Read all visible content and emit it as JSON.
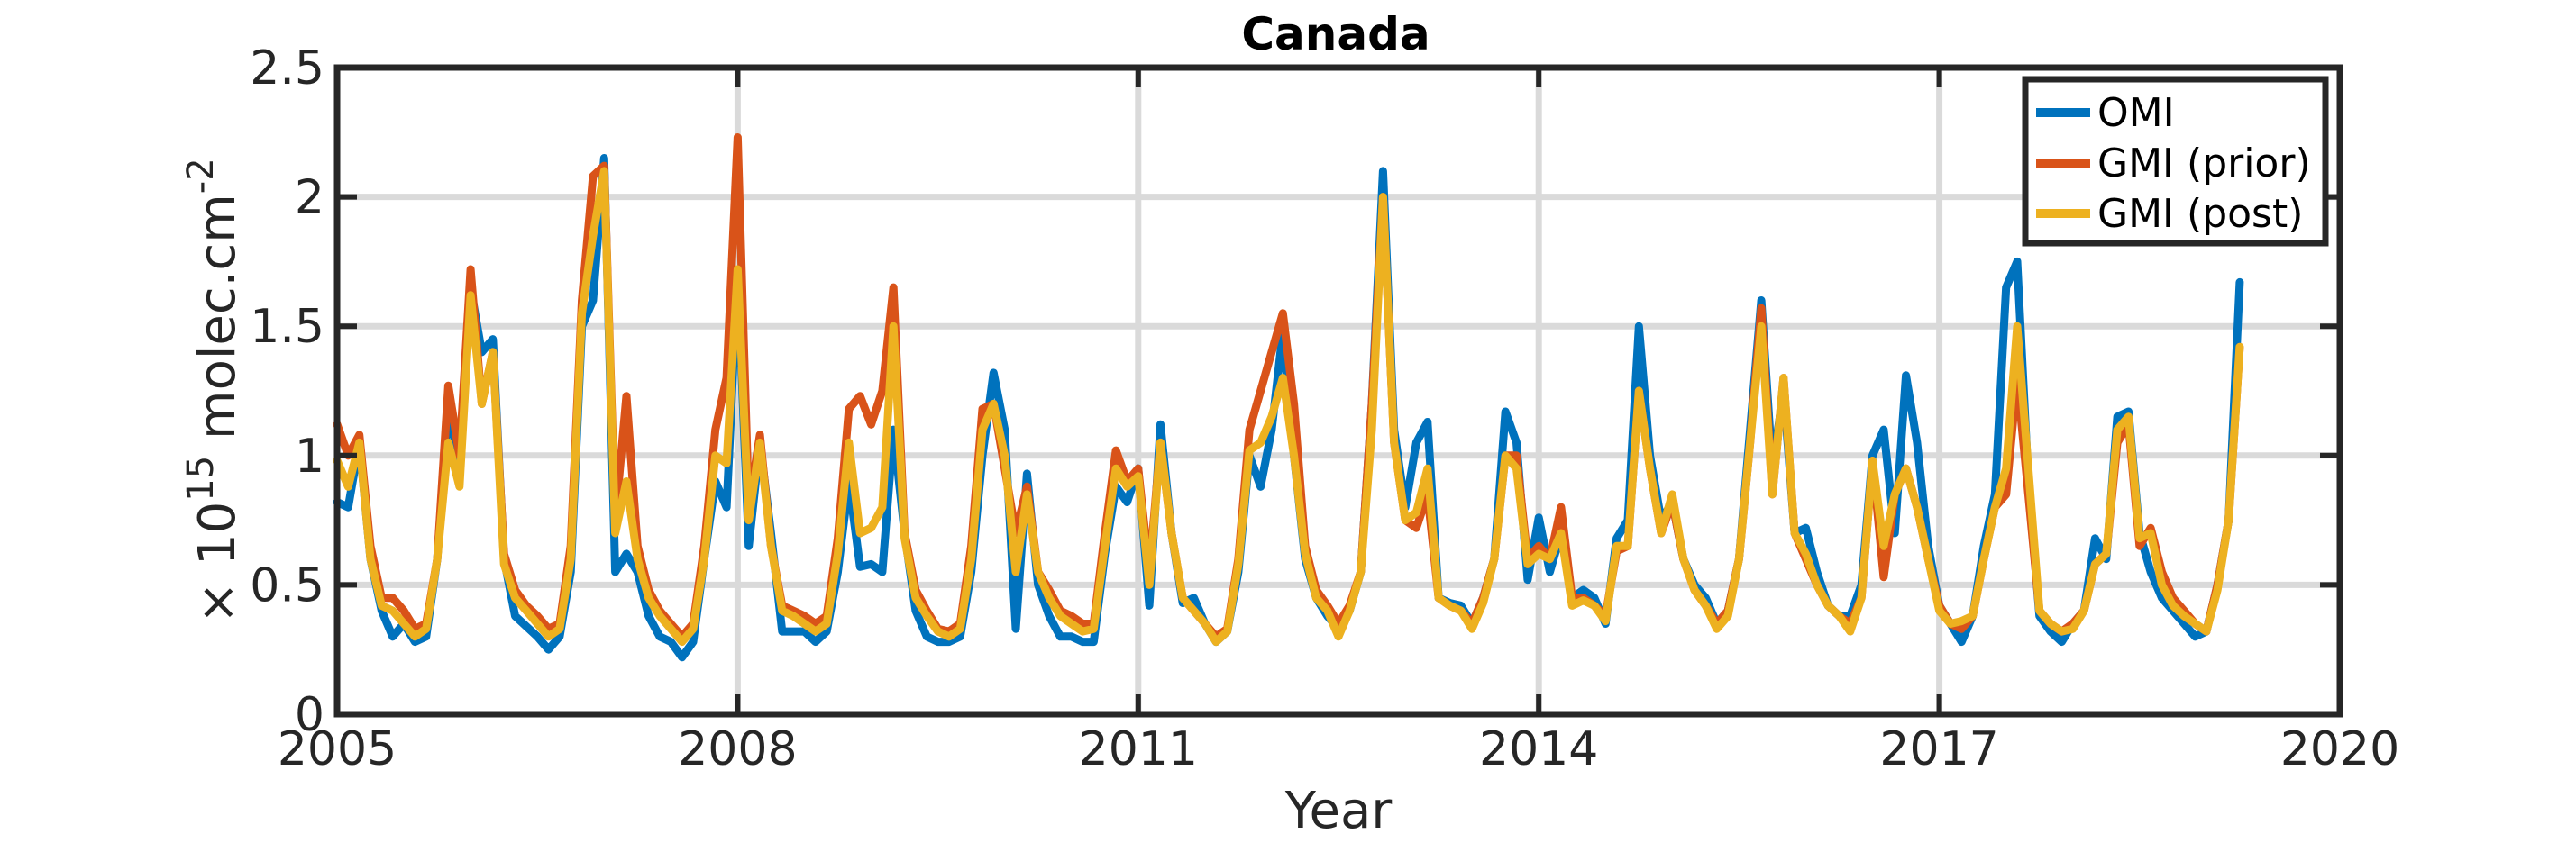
{
  "chart_data": {
    "type": "line",
    "title": "Canada",
    "xlabel": "Year",
    "ylabel_prefix": "× 10",
    "ylabel_exponent": "15",
    "ylabel_units": " molec.cm",
    "ylabel_units_exponent": "-2",
    "xlim": [
      2005,
      2020
    ],
    "ylim": [
      0,
      2.5
    ],
    "xticks": [
      2005,
      2008,
      2011,
      2014,
      2017,
      2020
    ],
    "xtick_labels": [
      "2005",
      "2008",
      "2011",
      "2014",
      "2017",
      "2020"
    ],
    "yticks": [
      0,
      0.5,
      1,
      1.5,
      2,
      2.5
    ],
    "ytick_labels": [
      "0",
      "0.5",
      "1",
      "1.5",
      "2",
      "2.5"
    ],
    "grid": true,
    "legend_position": "top-right",
    "start": "2005-01",
    "interval": "monthly",
    "series": [
      {
        "name": "OMI",
        "color": "#0072BD",
        "values": [
          0.82,
          0.8,
          1.05,
          0.6,
          0.4,
          0.3,
          0.35,
          0.28,
          0.3,
          0.6,
          1.2,
          0.95,
          1.65,
          1.4,
          1.45,
          0.6,
          0.38,
          0.34,
          0.3,
          0.25,
          0.3,
          0.55,
          1.5,
          1.6,
          2.15,
          0.55,
          0.62,
          0.55,
          0.38,
          0.3,
          0.28,
          0.22,
          0.28,
          0.6,
          0.9,
          0.8,
          1.7,
          0.65,
          1.05,
          0.7,
          0.32,
          0.32,
          0.32,
          0.28,
          0.32,
          0.55,
          0.9,
          0.57,
          0.58,
          0.55,
          1.1,
          0.7,
          0.4,
          0.3,
          0.28,
          0.28,
          0.3,
          0.55,
          1.0,
          1.32,
          1.1,
          0.33,
          0.93,
          0.5,
          0.38,
          0.3,
          0.3,
          0.28,
          0.28,
          0.62,
          0.88,
          0.82,
          0.95,
          0.42,
          1.12,
          0.7,
          0.43,
          0.45,
          0.35,
          0.28,
          0.32,
          0.55,
          1.0,
          0.88,
          1.1,
          1.48,
          1.0,
          0.6,
          0.45,
          0.38,
          0.33,
          0.4,
          0.55,
          1.2,
          2.1,
          1.1,
          0.8,
          1.05,
          1.13,
          0.45,
          0.43,
          0.42,
          0.35,
          0.45,
          0.6,
          1.17,
          1.05,
          0.52,
          0.76,
          0.55,
          0.7,
          0.45,
          0.48,
          0.45,
          0.35,
          0.68,
          0.75,
          1.5,
          1.0,
          0.75,
          0.82,
          0.6,
          0.5,
          0.45,
          0.35,
          0.4,
          0.6,
          1.1,
          1.6,
          0.95,
          1.25,
          0.7,
          0.72,
          0.55,
          0.42,
          0.38,
          0.38,
          0.5,
          1.0,
          1.1,
          0.7,
          1.31,
          1.05,
          0.65,
          0.42,
          0.35,
          0.28,
          0.38,
          0.65,
          0.85,
          1.65,
          1.75,
          0.9,
          0.38,
          0.32,
          0.28,
          0.35,
          0.4,
          0.68,
          0.6,
          1.15,
          1.17,
          0.7,
          0.55,
          0.45,
          0.4,
          0.35,
          0.3,
          0.32,
          0.5,
          0.75,
          1.67
        ]
      },
      {
        "name": "GMI (prior)",
        "color": "#D95319",
        "values": [
          1.12,
          1.0,
          1.08,
          0.65,
          0.45,
          0.45,
          0.4,
          0.33,
          0.35,
          0.6,
          1.27,
          1.0,
          1.72,
          1.2,
          1.4,
          0.62,
          0.48,
          0.42,
          0.38,
          0.33,
          0.35,
          0.65,
          1.6,
          2.08,
          2.12,
          0.75,
          1.23,
          0.65,
          0.48,
          0.4,
          0.35,
          0.3,
          0.35,
          0.65,
          1.1,
          1.3,
          2.23,
          0.8,
          1.08,
          0.65,
          0.42,
          0.4,
          0.38,
          0.35,
          0.38,
          0.68,
          1.18,
          1.23,
          1.12,
          1.25,
          1.65,
          0.7,
          0.48,
          0.4,
          0.33,
          0.32,
          0.35,
          0.65,
          1.18,
          1.2,
          0.95,
          0.7,
          0.88,
          0.55,
          0.48,
          0.4,
          0.38,
          0.35,
          0.35,
          0.7,
          1.02,
          0.9,
          0.95,
          0.55,
          1.05,
          0.7,
          0.45,
          0.4,
          0.35,
          0.3,
          0.33,
          0.6,
          1.1,
          1.25,
          1.4,
          1.55,
          1.2,
          0.65,
          0.48,
          0.42,
          0.35,
          0.42,
          0.55,
          1.2,
          2.0,
          1.05,
          0.75,
          0.72,
          0.85,
          0.45,
          0.42,
          0.4,
          0.35,
          0.45,
          0.6,
          1.0,
          1.0,
          0.6,
          0.65,
          0.6,
          0.8,
          0.45,
          0.45,
          0.42,
          0.38,
          0.63,
          0.65,
          1.25,
          0.95,
          0.7,
          0.82,
          0.6,
          0.48,
          0.42,
          0.35,
          0.4,
          0.6,
          1.05,
          1.57,
          0.85,
          1.3,
          0.7,
          0.6,
          0.5,
          0.42,
          0.38,
          0.35,
          0.45,
          0.98,
          0.53,
          0.85,
          0.95,
          0.8,
          0.6,
          0.42,
          0.35,
          0.33,
          0.38,
          0.6,
          0.8,
          0.85,
          1.3,
          0.85,
          0.4,
          0.35,
          0.32,
          0.35,
          0.4,
          0.58,
          0.62,
          1.05,
          1.12,
          0.65,
          0.72,
          0.55,
          0.45,
          0.4,
          0.35,
          0.32,
          0.5,
          0.75,
          1.42
        ]
      },
      {
        "name": "GMI (post)",
        "color": "#EDB120",
        "values": [
          0.98,
          0.88,
          1.05,
          0.6,
          0.42,
          0.4,
          0.35,
          0.3,
          0.33,
          0.6,
          1.05,
          0.88,
          1.62,
          1.2,
          1.4,
          0.58,
          0.45,
          0.4,
          0.35,
          0.3,
          0.33,
          0.6,
          1.55,
          1.85,
          2.1,
          0.7,
          0.9,
          0.6,
          0.45,
          0.38,
          0.33,
          0.28,
          0.33,
          0.6,
          1.0,
          0.97,
          1.72,
          0.75,
          1.05,
          0.65,
          0.4,
          0.38,
          0.35,
          0.32,
          0.35,
          0.62,
          1.05,
          0.7,
          0.72,
          0.8,
          1.5,
          0.68,
          0.45,
          0.38,
          0.32,
          0.3,
          0.33,
          0.6,
          1.1,
          1.2,
          1.0,
          0.55,
          0.85,
          0.55,
          0.45,
          0.38,
          0.35,
          0.32,
          0.33,
          0.65,
          0.95,
          0.88,
          0.92,
          0.5,
          1.05,
          0.7,
          0.45,
          0.4,
          0.35,
          0.28,
          0.32,
          0.58,
          1.02,
          1.05,
          1.15,
          1.3,
          1.0,
          0.62,
          0.45,
          0.4,
          0.3,
          0.4,
          0.55,
          1.1,
          2.0,
          1.05,
          0.75,
          0.78,
          0.95,
          0.45,
          0.42,
          0.4,
          0.33,
          0.43,
          0.6,
          1.0,
          0.95,
          0.58,
          0.62,
          0.6,
          0.7,
          0.42,
          0.44,
          0.42,
          0.36,
          0.65,
          0.65,
          1.25,
          0.95,
          0.7,
          0.85,
          0.6,
          0.48,
          0.42,
          0.33,
          0.38,
          0.6,
          1.05,
          1.5,
          0.85,
          1.3,
          0.7,
          0.62,
          0.5,
          0.42,
          0.38,
          0.32,
          0.45,
          0.98,
          0.65,
          0.85,
          0.95,
          0.8,
          0.6,
          0.4,
          0.35,
          0.36,
          0.38,
          0.6,
          0.8,
          0.95,
          1.5,
          0.95,
          0.4,
          0.35,
          0.32,
          0.33,
          0.4,
          0.58,
          0.62,
          1.1,
          1.15,
          0.68,
          0.7,
          0.5,
          0.42,
          0.38,
          0.35,
          0.32,
          0.48,
          0.75,
          1.42
        ]
      }
    ]
  }
}
